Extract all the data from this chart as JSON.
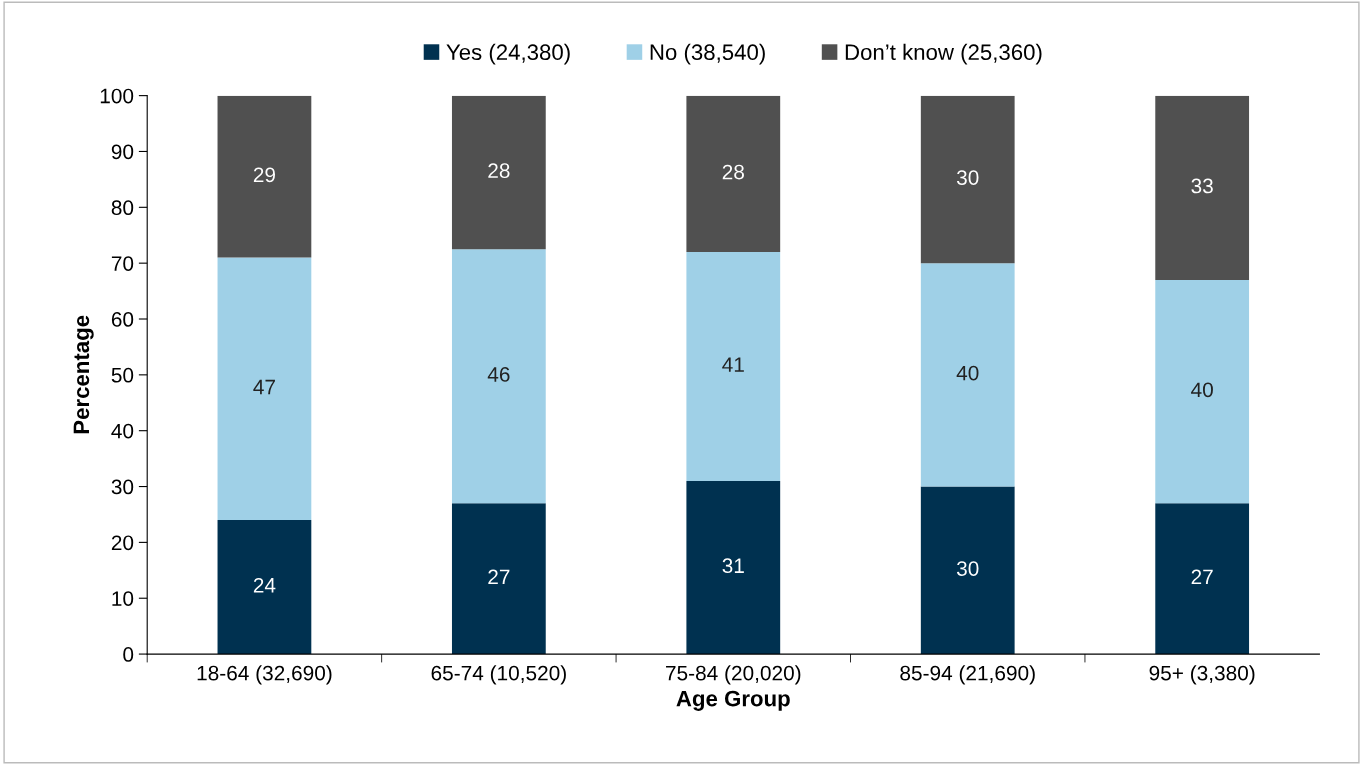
{
  "chart_data": {
    "type": "bar",
    "stacked": true,
    "categories": [
      "18-64 (32,690)",
      "65-74 (10,520)",
      "75-84 (20,020)",
      "85-94 (21,690)",
      "95+ (3,380)"
    ],
    "series": [
      {
        "name": "Yes (24,380)",
        "color": "#003150",
        "values": [
          24,
          27,
          31,
          30,
          27
        ],
        "value_labels": [
          "24",
          "27",
          "31",
          "30",
          "27"
        ]
      },
      {
        "name": "No (38,540)",
        "color": "#9fd0e7",
        "values": [
          47,
          45.5,
          41,
          40,
          40
        ],
        "value_labels": [
          "47",
          "46",
          "41",
          "40",
          "40"
        ]
      },
      {
        "name": "Don’t know (25,360)",
        "color": "#505050",
        "values": [
          29,
          27.5,
          28,
          30,
          33
        ],
        "value_labels": [
          "29",
          "28",
          "28",
          "30",
          "33"
        ]
      }
    ],
    "xlabel": "Age Group",
    "ylabel": "Percentage",
    "ylim": [
      0,
      100
    ],
    "yticks": [
      0,
      10,
      20,
      30,
      40,
      50,
      60,
      70,
      80,
      90,
      100
    ],
    "legend": "top",
    "grid": false
  }
}
